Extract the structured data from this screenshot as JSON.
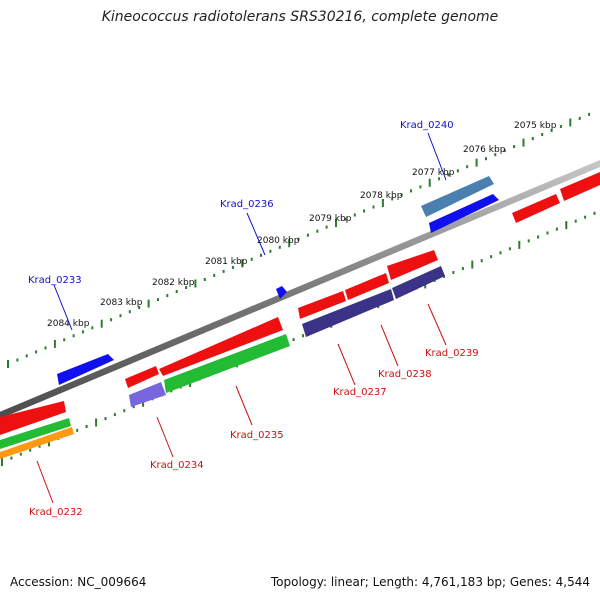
{
  "title": "Kineococcus radiotolerans SRS30216, complete genome",
  "footer": {
    "accession": "Accession: NC_009664",
    "summary": "Topology: linear; Length: 4,761,183 bp; Genes: 4,544"
  },
  "scale": {
    "label_color": "#111111",
    "tick_color": "#2a7d2a",
    "labels": [
      "2075 kbp",
      "2076 kbp",
      "2077 kbp",
      "2078 kbp",
      "2079 kbp",
      "2080 kbp",
      "2081 kbp",
      "2082 kbp",
      "2083 kbp",
      "2084 kbp"
    ]
  },
  "colors": {
    "forward_label": "#1010cc",
    "reverse_label": "#cc1010",
    "backbone": "#777777"
  },
  "genes": [
    {
      "name": "Krad_0232",
      "strand": "reverse"
    },
    {
      "name": "Krad_0233",
      "strand": "forward"
    },
    {
      "name": "Krad_0234",
      "strand": "reverse"
    },
    {
      "name": "Krad_0235",
      "strand": "reverse"
    },
    {
      "name": "Krad_0236",
      "strand": "forward"
    },
    {
      "name": "Krad_0237",
      "strand": "reverse"
    },
    {
      "name": "Krad_0238",
      "strand": "reverse"
    },
    {
      "name": "Krad_0239",
      "strand": "reverse"
    },
    {
      "name": "Krad_0240",
      "strand": "forward"
    }
  ]
}
